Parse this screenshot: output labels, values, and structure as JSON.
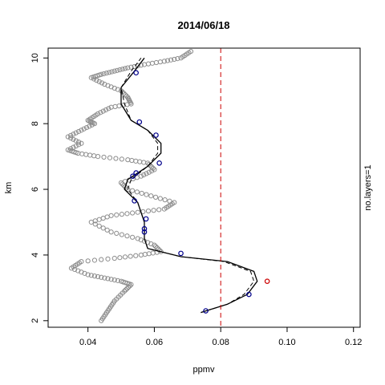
{
  "chart_data": {
    "type": "scatter",
    "title": "2014/06/18",
    "xlabel": "ppmv",
    "ylabel": "km",
    "side_label": "no.layers=1",
    "xlim": [
      0.028,
      0.122
    ],
    "ylim": [
      1.8,
      10.3
    ],
    "x_ticks": [
      0.04,
      0.06,
      0.08,
      0.1,
      0.12
    ],
    "x_tick_labels": [
      "0.04",
      "0.06",
      "0.08",
      "0.10",
      "0.12"
    ],
    "y_ticks": [
      2,
      4,
      6,
      8,
      10
    ],
    "y_tick_labels": [
      "2",
      "4",
      "6",
      "8",
      "10"
    ],
    "reference_line": {
      "x": 0.08,
      "color": "#cc0000"
    },
    "colors": {
      "observations": "#8c8c8c",
      "fit": "#000000",
      "layer_points": "#00008b",
      "outlier": "#cc0000"
    },
    "series": [
      {
        "kind": "observations",
        "x": [
          0.044,
          0.046,
          0.048,
          0.051,
          0.053,
          0.05,
          0.045,
          0.04,
          0.035,
          0.038,
          0.048,
          0.056,
          0.062,
          0.06,
          0.055,
          0.047,
          0.041,
          0.047,
          0.055,
          0.063,
          0.066,
          0.059,
          0.052,
          0.05,
          0.056,
          0.06,
          0.058,
          0.052,
          0.043,
          0.037,
          0.034,
          0.038,
          0.034,
          0.038,
          0.042,
          0.04,
          0.043,
          0.047,
          0.053,
          0.052,
          0.05,
          0.045,
          0.041,
          0.044,
          0.048,
          0.052,
          0.057,
          0.063,
          0.068,
          0.071
        ],
        "y": [
          2.0,
          2.3,
          2.6,
          2.9,
          3.1,
          3.2,
          3.3,
          3.4,
          3.6,
          3.8,
          3.9,
          4.0,
          4.1,
          4.3,
          4.5,
          4.7,
          5.0,
          5.2,
          5.3,
          5.4,
          5.6,
          5.8,
          6.0,
          6.2,
          6.4,
          6.6,
          6.8,
          6.9,
          7.0,
          7.1,
          7.2,
          7.4,
          7.6,
          7.8,
          8.0,
          8.1,
          8.3,
          8.5,
          8.6,
          8.8,
          9.0,
          9.2,
          9.4,
          9.5,
          9.6,
          9.7,
          9.8,
          9.9,
          10.0,
          10.2
        ]
      },
      {
        "kind": "fit",
        "x": [
          0.074,
          0.082,
          0.088,
          0.091,
          0.09,
          0.082,
          0.068,
          0.058,
          0.057,
          0.057,
          0.055,
          0.051,
          0.052,
          0.058,
          0.062,
          0.062,
          0.058,
          0.053,
          0.05,
          0.05,
          0.054,
          0.057
        ],
        "y": [
          2.25,
          2.5,
          2.8,
          3.2,
          3.5,
          3.8,
          3.95,
          4.2,
          4.5,
          5.0,
          5.6,
          6.0,
          6.3,
          6.7,
          7.1,
          7.4,
          7.8,
          8.1,
          8.6,
          9.1,
          9.6,
          10.0
        ]
      },
      {
        "kind": "fit-dashed",
        "x": [
          0.074,
          0.082,
          0.087,
          0.09,
          0.089,
          0.081,
          0.068,
          0.058,
          0.057,
          0.057,
          0.055,
          0.052,
          0.053,
          0.058,
          0.061,
          0.061,
          0.058,
          0.053,
          0.051,
          0.05,
          0.053,
          0.056
        ],
        "y": [
          2.25,
          2.5,
          2.8,
          3.2,
          3.5,
          3.8,
          3.95,
          4.2,
          4.5,
          5.0,
          5.6,
          6.0,
          6.3,
          6.7,
          7.1,
          7.4,
          7.8,
          8.1,
          8.6,
          9.1,
          9.6,
          10.0
        ]
      },
      {
        "kind": "layer-points",
        "x": [
          0.0755,
          0.0885,
          0.068,
          0.057,
          0.057,
          0.0575,
          0.054,
          0.0615,
          0.0545,
          0.0535,
          0.0605,
          0.0555,
          0.0545
        ],
        "y": [
          2.3,
          2.8,
          4.05,
          4.7,
          4.8,
          5.1,
          5.65,
          6.8,
          6.5,
          6.4,
          7.65,
          8.05,
          9.55
        ]
      },
      {
        "kind": "outlier",
        "x": [
          0.094
        ],
        "y": [
          3.2
        ]
      }
    ]
  }
}
